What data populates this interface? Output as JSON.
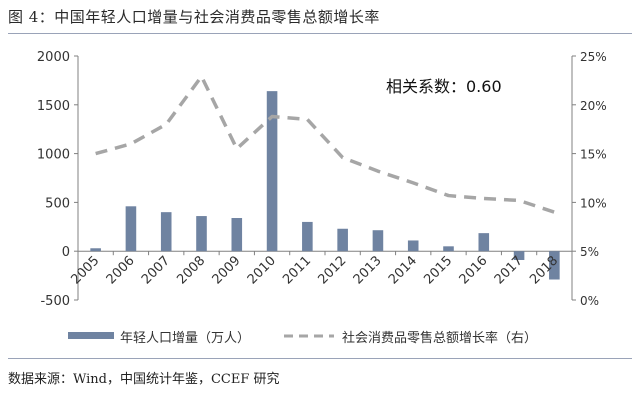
{
  "figure_title": "图 4：中国年轻人口增量与社会消费品零售总额增长率",
  "source_note": "数据来源：Wind，中国统计年鉴，CCEF 研究",
  "colors": {
    "bar": "#6f83a1",
    "line": "#a6a6a6",
    "axis": "#808080"
  },
  "chart_data": {
    "type": "bar",
    "categories": [
      "2005",
      "2006",
      "2007",
      "2008",
      "2009",
      "2010",
      "2011",
      "2012",
      "2013",
      "2014",
      "2015",
      "2016",
      "2017",
      "2018"
    ],
    "series": [
      {
        "name": "年轻人口增量（万人）",
        "type": "bar",
        "axis": "left",
        "values": [
          30,
          460,
          400,
          360,
          340,
          1640,
          300,
          230,
          215,
          110,
          50,
          185,
          -90,
          -290
        ]
      },
      {
        "name": "社会消费品零售总额增长率（右）",
        "type": "line",
        "style": "dashed",
        "axis": "right",
        "values": [
          15.0,
          16.0,
          18.0,
          22.9,
          15.5,
          18.8,
          18.5,
          14.6,
          13.2,
          12.0,
          10.7,
          10.4,
          10.2,
          9.0
        ]
      }
    ],
    "y_left": {
      "ylim": [
        -500,
        2000
      ],
      "ticks": [
        "-500",
        "0",
        "500",
        "1000",
        "1500",
        "2000"
      ]
    },
    "y_right": {
      "ylim": [
        0,
        25
      ],
      "ticks": [
        "0%",
        "5%",
        "10%",
        "15%",
        "20%",
        "25%"
      ]
    },
    "annotation": "相关系数：0.60",
    "legend_position": "bottom",
    "grid": false
  }
}
